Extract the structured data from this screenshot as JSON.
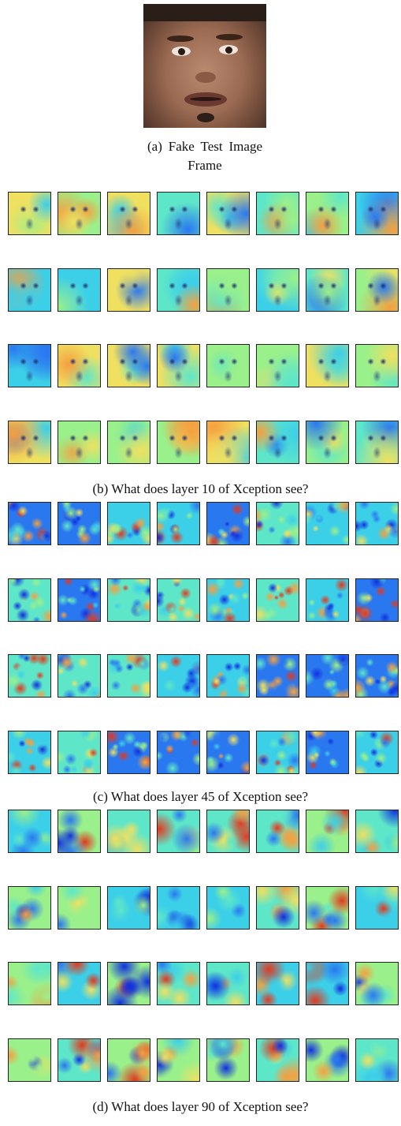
{
  "figure": {
    "subfigures": [
      {
        "caption": "(a) Fake Test Image Frame"
      },
      {
        "caption": "(b) What does layer 10 of Xception see?"
      },
      {
        "caption": "(c) What does layer 45 of Xception see?"
      },
      {
        "caption": "(d) What does layer 90 of Xception see?"
      }
    ]
  }
}
